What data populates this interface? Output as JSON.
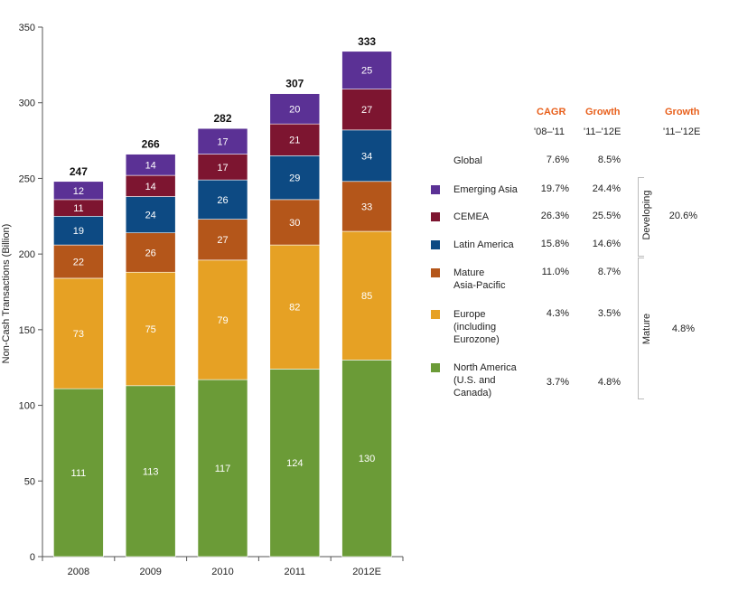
{
  "chart_data": {
    "type": "bar",
    "stacked": true,
    "categories": [
      "2008",
      "2009",
      "2010",
      "2011",
      "2012E"
    ],
    "ylabel": "Non-Cash Transactions (Billion)",
    "ylim": [
      0,
      350
    ],
    "yticks": [
      "0",
      "50",
      "100",
      "150",
      "200",
      "250",
      "300",
      "350"
    ],
    "totals": [
      "247",
      "266",
      "282",
      "307",
      "333"
    ],
    "series": [
      {
        "name": "North America",
        "color": "#6b9b37",
        "values": [
          111,
          113,
          117,
          124,
          130
        ]
      },
      {
        "name": "Europe",
        "color": "#e6a124",
        "values": [
          73,
          75,
          79,
          82,
          85
        ]
      },
      {
        "name": "Mature Asia-Pacific",
        "color": "#b4561a",
        "values": [
          22,
          26,
          27,
          30,
          33
        ]
      },
      {
        "name": "Latin America",
        "color": "#0d4a83",
        "values": [
          19,
          24,
          26,
          29,
          34
        ]
      },
      {
        "name": "CEMEA",
        "color": "#7d1530",
        "values": [
          11,
          14,
          17,
          21,
          27
        ]
      },
      {
        "name": "Emerging Asia",
        "color": "#5b3195",
        "values": [
          12,
          14,
          17,
          20,
          25
        ]
      }
    ]
  },
  "table": {
    "headers": {
      "cagr": "CAGR",
      "growth": "Growth",
      "growth_group": "Growth"
    },
    "subheaders": {
      "cagr": "'08–'11",
      "growth": "'11–'12E",
      "growth_group": "'11–'12E"
    },
    "global": {
      "label": "Global",
      "cagr": "7.6%",
      "growth": "8.5%"
    },
    "rows": [
      {
        "label": "Emerging Asia",
        "cagr": "19.7%",
        "growth": "24.4%"
      },
      {
        "label": "CEMEA",
        "cagr": "26.3%",
        "growth": "25.5%"
      },
      {
        "label": "Latin America",
        "cagr": "15.8%",
        "growth": "14.6%"
      },
      {
        "label": "Mature\nAsia-Pacific",
        "cagr": "11.0%",
        "growth": "8.7%"
      },
      {
        "label": "Europe\n(including\nEurozone)",
        "cagr": "4.3%",
        "growth": "3.5%"
      },
      {
        "label": "North America\n(U.S. and\nCanada)",
        "cagr": "3.7%",
        "growth": "4.8%"
      }
    ],
    "groups": {
      "developing": {
        "label": "Developing",
        "growth": "20.6%"
      },
      "mature": {
        "label": "Mature",
        "growth": "4.8%"
      }
    }
  }
}
